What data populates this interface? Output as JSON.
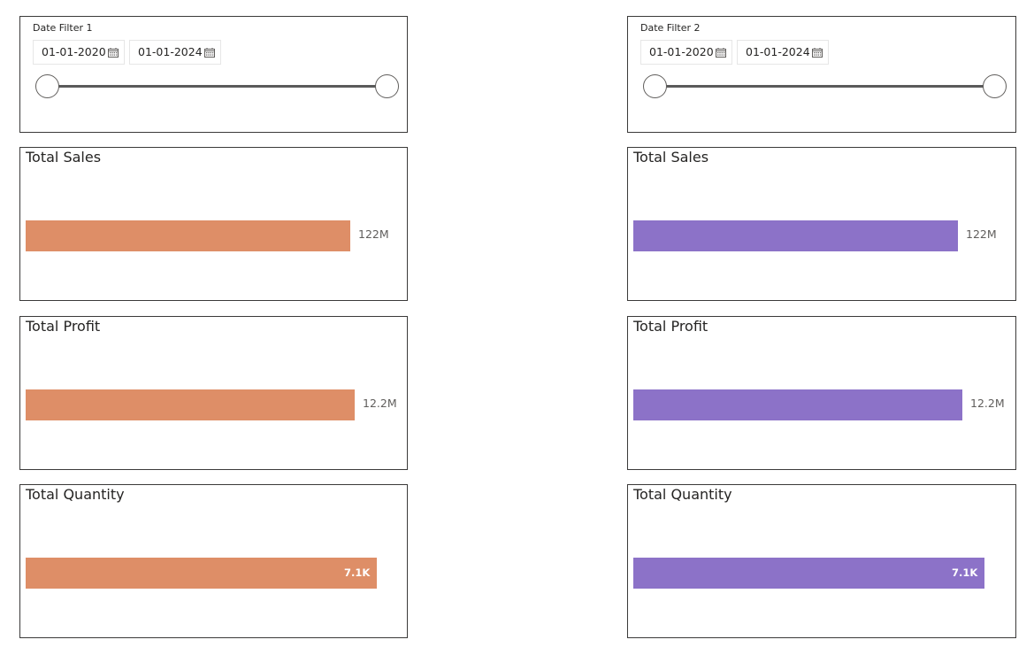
{
  "colors": {
    "left_bar": "#DE8E67",
    "right_bar": "#8C72C8"
  },
  "filters": [
    {
      "title": "Date Filter 1",
      "start_date": "01-01-2020",
      "end_date": "01-01-2024"
    },
    {
      "title": "Date Filter 2",
      "start_date": "01-01-2020",
      "end_date": "01-01-2024"
    }
  ],
  "cards": {
    "left": [
      {
        "title": "Total Sales",
        "value_label": "122M",
        "value": 122000000,
        "fill_fraction": 0.85
      },
      {
        "title": "Total Profit",
        "value_label": "12.2M",
        "value": 12200000,
        "fill_fraction": 0.86
      },
      {
        "title": "Total Quantity",
        "value_label": "7.1K",
        "value": 7100,
        "fill_fraction": 0.92
      }
    ],
    "right": [
      {
        "title": "Total Sales",
        "value_label": "122M",
        "value": 122000000,
        "fill_fraction": 0.85
      },
      {
        "title": "Total Profit",
        "value_label": "12.2M",
        "value": 12200000,
        "fill_fraction": 0.86
      },
      {
        "title": "Total Quantity",
        "value_label": "7.1K",
        "value": 7100,
        "fill_fraction": 0.92
      }
    ]
  }
}
